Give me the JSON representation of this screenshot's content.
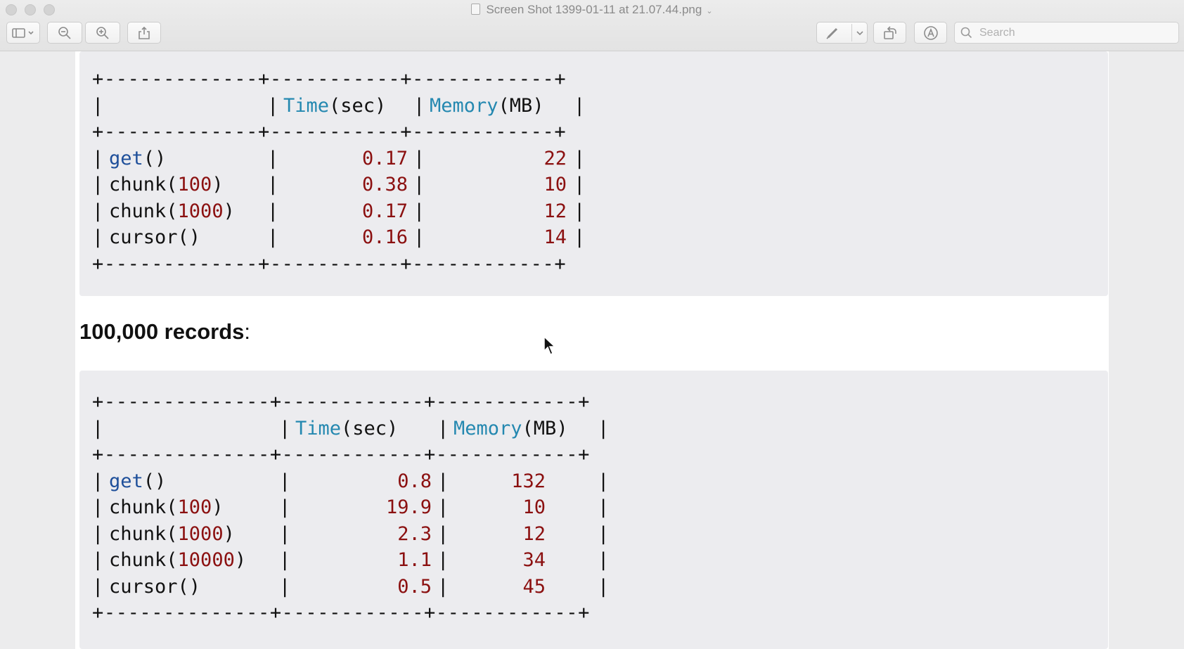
{
  "window": {
    "title": "Screen Shot 1399-01-11 at 21.07.44.png"
  },
  "toolbar": {
    "search_placeholder": "Search"
  },
  "heading": {
    "text": "100,000 records",
    "suffix": ":"
  },
  "table1": {
    "border": "+-------------+-----------+------------+",
    "headers": [
      "",
      "Time",
      "(sec)",
      "Memory",
      "(MB)"
    ],
    "rows": [
      {
        "fn": "get",
        "paren": "()",
        "arg": "",
        "time": "0.17",
        "mem": "22"
      },
      {
        "fn": "chunk(",
        "paren": ")",
        "arg": "100",
        "time": "0.38",
        "mem": "10"
      },
      {
        "fn": "chunk(",
        "paren": ")",
        "arg": "1000",
        "time": "0.17",
        "mem": "12"
      },
      {
        "fn": "cursor()",
        "paren": "",
        "arg": "",
        "time": "0.16",
        "mem": "14"
      }
    ]
  },
  "table2": {
    "border": "+--------------+------------+------------+",
    "headers": [
      "",
      "Time",
      "(sec)",
      "Memory",
      "(MB)"
    ],
    "rows": [
      {
        "fn": "get",
        "paren": "()",
        "arg": "",
        "time": "0.8",
        "mem": "132"
      },
      {
        "fn": "chunk(",
        "paren": ")",
        "arg": "100",
        "time": "19.9",
        "mem": "10"
      },
      {
        "fn": "chunk(",
        "paren": ")",
        "arg": "1000",
        "time": "2.3",
        "mem": "12"
      },
      {
        "fn": "chunk(",
        "paren": ")",
        "arg": "10000",
        "time": "1.1",
        "mem": "34"
      },
      {
        "fn": "cursor()",
        "paren": "",
        "arg": "",
        "time": "0.5",
        "mem": "45"
      }
    ]
  }
}
